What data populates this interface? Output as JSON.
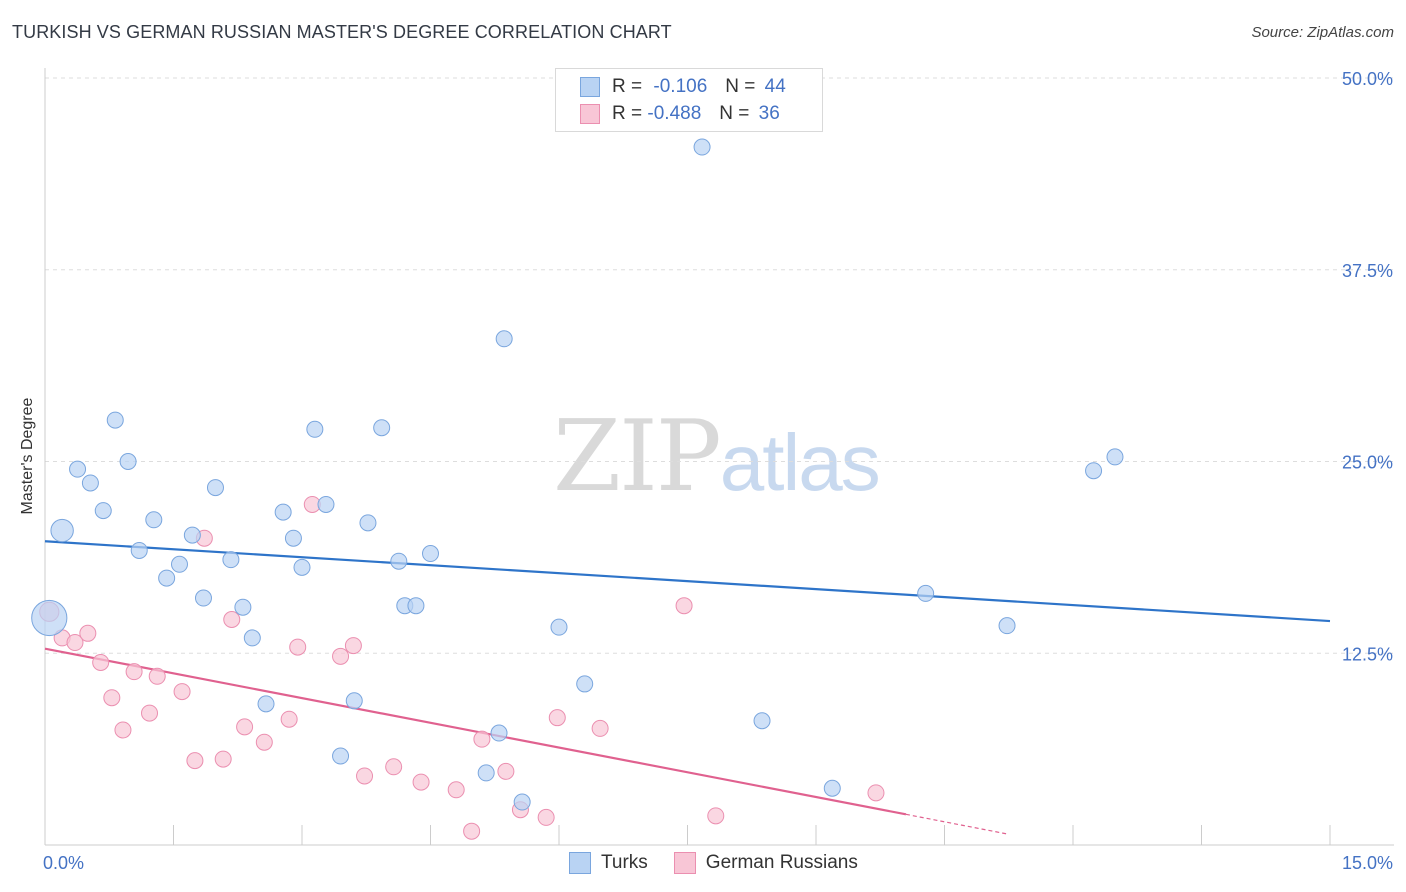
{
  "header": {
    "title": "TURKISH VS GERMAN RUSSIAN MASTER'S DEGREE CORRELATION CHART",
    "source": "Source: ZipAtlas.com"
  },
  "watermark": {
    "zip": "ZIP",
    "atlas": "atlas"
  },
  "legend_top": {
    "rows": [
      {
        "r_label": "R =",
        "r_value": "-0.106",
        "n_label": "N =",
        "n_value": "44"
      },
      {
        "r_label": "R =",
        "r_value": "-0.488",
        "n_label": "N =",
        "n_value": "36"
      }
    ]
  },
  "legend_bottom": {
    "series_a": "Turks",
    "series_b": "German Russians"
  },
  "colors": {
    "turks_fill": "#b9d3f3",
    "turks_stroke": "#7aa6de",
    "turks_line": "#2e74c9",
    "gr_fill": "#f8c6d6",
    "gr_stroke": "#eb8fb0",
    "gr_line": "#e0618f",
    "tick_text": "#4472c4",
    "grid": "#dddddd"
  },
  "chart_data": {
    "type": "scatter",
    "title": "TURKISH VS GERMAN RUSSIAN MASTER'S DEGREE CORRELATION CHART",
    "xlabel": "",
    "ylabel": "Master's Degree",
    "xlim": [
      0,
      15
    ],
    "ylim": [
      0,
      50
    ],
    "x_tick_labels": [
      "0.0%",
      "15.0%"
    ],
    "y_ticks": [
      12.5,
      25.0,
      37.5,
      50.0
    ],
    "y_tick_labels": [
      "12.5%",
      "25.0%",
      "37.5%",
      "50.0%"
    ],
    "grid": true,
    "legend_position": "top-center",
    "series": [
      {
        "name": "Turks",
        "r": -0.106,
        "n": 44,
        "trend": {
          "x": [
            0,
            15
          ],
          "y": [
            19.8,
            14.6
          ]
        },
        "points": [
          [
            0.05,
            14.8,
            2.2
          ],
          [
            0.2,
            20.5,
            1.4
          ],
          [
            0.38,
            24.5,
            1
          ],
          [
            0.53,
            23.6,
            1
          ],
          [
            0.68,
            21.8,
            1
          ],
          [
            0.82,
            27.7,
            1
          ],
          [
            0.97,
            25.0,
            1
          ],
          [
            1.1,
            19.2,
            1
          ],
          [
            1.27,
            21.2,
            1
          ],
          [
            1.42,
            17.4,
            1
          ],
          [
            1.57,
            18.3,
            1
          ],
          [
            1.72,
            20.2,
            1
          ],
          [
            1.85,
            16.1,
            1
          ],
          [
            1.99,
            23.3,
            1
          ],
          [
            2.17,
            18.6,
            1
          ],
          [
            2.31,
            15.5,
            1
          ],
          [
            2.42,
            13.5,
            1
          ],
          [
            2.58,
            9.2,
            1
          ],
          [
            2.78,
            21.7,
            1
          ],
          [
            2.9,
            20.0,
            1
          ],
          [
            3.0,
            18.1,
            1
          ],
          [
            3.15,
            27.1,
            1
          ],
          [
            3.28,
            22.2,
            1
          ],
          [
            3.45,
            5.8,
            1
          ],
          [
            3.61,
            9.4,
            1
          ],
          [
            3.77,
            21.0,
            1
          ],
          [
            3.93,
            27.2,
            1
          ],
          [
            4.13,
            18.5,
            1
          ],
          [
            4.2,
            15.6,
            1
          ],
          [
            4.33,
            15.6,
            1
          ],
          [
            4.5,
            19.0,
            1
          ],
          [
            5.15,
            4.7,
            1
          ],
          [
            5.3,
            7.3,
            1
          ],
          [
            5.36,
            33.0,
            1
          ],
          [
            5.57,
            2.8,
            1
          ],
          [
            6.0,
            14.2,
            1
          ],
          [
            6.3,
            10.5,
            1
          ],
          [
            7.67,
            45.5,
            1
          ],
          [
            8.37,
            8.1,
            1
          ],
          [
            9.19,
            3.7,
            1
          ],
          [
            10.28,
            16.4,
            1
          ],
          [
            11.23,
            14.3,
            1
          ],
          [
            12.24,
            24.4,
            1
          ],
          [
            12.49,
            25.3,
            1
          ]
        ]
      },
      {
        "name": "German Russians",
        "r": -0.488,
        "n": 36,
        "trend": {
          "x": [
            0,
            10.05
          ],
          "y": [
            12.8,
            2.0
          ]
        },
        "trend_extension": {
          "x": [
            10.05,
            11.25
          ],
          "y": [
            2.0,
            0.7
          ]
        },
        "points": [
          [
            0.05,
            15.2,
            1.2
          ],
          [
            0.2,
            13.5,
            1
          ],
          [
            0.35,
            13.2,
            1
          ],
          [
            0.5,
            13.8,
            1
          ],
          [
            0.65,
            11.9,
            1
          ],
          [
            0.78,
            9.6,
            1
          ],
          [
            0.91,
            7.5,
            1
          ],
          [
            1.04,
            11.3,
            1
          ],
          [
            1.22,
            8.6,
            1
          ],
          [
            1.31,
            11.0,
            1
          ],
          [
            1.6,
            10.0,
            1
          ],
          [
            1.75,
            5.5,
            1
          ],
          [
            1.86,
            20.0,
            1
          ],
          [
            2.08,
            5.6,
            1
          ],
          [
            2.18,
            14.7,
            1
          ],
          [
            2.33,
            7.7,
            1
          ],
          [
            2.56,
            6.7,
            1
          ],
          [
            2.85,
            8.2,
            1
          ],
          [
            2.95,
            12.9,
            1
          ],
          [
            3.12,
            22.2,
            1
          ],
          [
            3.45,
            12.3,
            1
          ],
          [
            3.6,
            13.0,
            1
          ],
          [
            3.73,
            4.5,
            1
          ],
          [
            4.07,
            5.1,
            1
          ],
          [
            4.39,
            4.1,
            1
          ],
          [
            4.8,
            3.6,
            1
          ],
          [
            4.98,
            0.9,
            1
          ],
          [
            5.1,
            6.9,
            1
          ],
          [
            5.38,
            4.8,
            1
          ],
          [
            5.55,
            2.3,
            1
          ],
          [
            5.85,
            1.8,
            1
          ],
          [
            5.98,
            8.3,
            1
          ],
          [
            6.48,
            7.6,
            1
          ],
          [
            7.46,
            15.6,
            1
          ],
          [
            7.83,
            1.9,
            1
          ],
          [
            9.7,
            3.4,
            1
          ]
        ]
      }
    ]
  }
}
